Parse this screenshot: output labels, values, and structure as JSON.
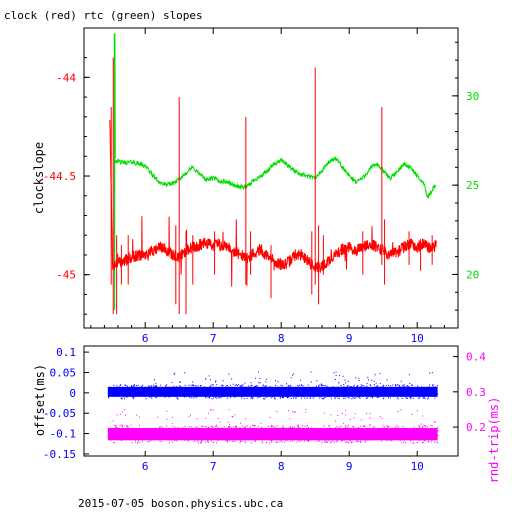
{
  "figure": {
    "title": "clock (red) rtc (green) slopes",
    "footer": "2015-07-05  boson.physics.ubc.ca"
  },
  "colors": {
    "clock": "#ff0000",
    "rtc": "#00dd00",
    "offset": "#0000ff",
    "roundtrip": "#ff00ff",
    "axes": "#000000"
  },
  "chart_data": [
    {
      "type": "line",
      "title": "clock (red) rtc (green) slopes",
      "xlim": [
        5.1,
        10.6
      ],
      "x_ticks": [
        "6",
        "7",
        "8",
        "9",
        "10"
      ],
      "x_tick_values": [
        6,
        7,
        8,
        9,
        10
      ],
      "y_left": {
        "label": "clockslope",
        "lim": [
          -45.27,
          -43.75
        ],
        "ticks": [
          "-44",
          "-44.5",
          "-45"
        ],
        "tick_values": [
          -44,
          -44.5,
          -45
        ]
      },
      "y_right": {
        "label": "",
        "lim": [
          17.0,
          33.8
        ],
        "ticks": [
          "30",
          "25",
          "20"
        ],
        "tick_values": [
          30,
          25,
          20
        ]
      },
      "grid": false,
      "series": [
        {
          "axis": "left",
          "x": [
            5.48,
            5.52,
            5.56,
            5.6,
            5.7,
            5.8,
            5.9,
            6.0,
            6.1,
            6.2,
            6.3,
            6.4,
            6.5,
            6.6,
            6.7,
            6.8,
            6.9,
            7.0,
            7.1,
            7.2,
            7.3,
            7.4,
            7.5,
            7.6,
            7.7,
            7.8,
            7.9,
            8.0,
            8.1,
            8.2,
            8.3,
            8.4,
            8.5,
            8.6,
            8.7,
            8.8,
            8.9,
            9.0,
            9.1,
            9.2,
            9.3,
            9.4,
            9.5,
            9.6,
            9.7,
            9.8,
            9.9,
            10.0,
            10.1,
            10.2,
            10.28
          ],
          "y": [
            -44.2,
            -44.95,
            -44.95,
            -44.94,
            -44.93,
            -44.91,
            -44.9,
            -44.9,
            -44.88,
            -44.86,
            -44.87,
            -44.9,
            -44.91,
            -44.88,
            -44.86,
            -44.85,
            -44.84,
            -44.85,
            -44.85,
            -44.85,
            -44.88,
            -44.9,
            -44.92,
            -44.89,
            -44.87,
            -44.91,
            -44.93,
            -44.95,
            -44.94,
            -44.9,
            -44.9,
            -44.93,
            -44.96,
            -44.96,
            -44.93,
            -44.9,
            -44.87,
            -44.86,
            -44.88,
            -44.86,
            -44.84,
            -44.86,
            -44.88,
            -44.9,
            -44.89,
            -44.86,
            -44.84,
            -44.86,
            -44.84,
            -44.87,
            -44.85
          ]
        },
        {
          "axis": "right",
          "x": [
            5.55,
            5.62,
            5.7,
            5.8,
            5.9,
            6.0,
            6.1,
            6.2,
            6.3,
            6.4,
            6.5,
            6.6,
            6.7,
            6.8,
            6.9,
            7.0,
            7.1,
            7.2,
            7.3,
            7.4,
            7.5,
            7.6,
            7.7,
            7.8,
            7.9,
            8.0,
            8.1,
            8.2,
            8.3,
            8.4,
            8.5,
            8.6,
            8.7,
            8.8,
            8.9,
            9.0,
            9.1,
            9.2,
            9.3,
            9.4,
            9.5,
            9.6,
            9.7,
            9.8,
            9.9,
            10.0,
            10.1,
            10.15,
            10.2,
            10.28
          ],
          "y": [
            26.4,
            26.3,
            26.25,
            26.3,
            26.2,
            26.1,
            25.6,
            25.2,
            25.0,
            25.1,
            25.3,
            25.7,
            26.0,
            25.6,
            25.3,
            25.4,
            25.2,
            25.2,
            25.0,
            24.9,
            24.9,
            25.3,
            25.5,
            25.8,
            26.2,
            26.4,
            26.1,
            25.8,
            25.6,
            25.5,
            25.4,
            25.8,
            26.3,
            26.5,
            26.0,
            25.5,
            25.2,
            25.4,
            25.9,
            26.2,
            25.8,
            25.4,
            25.7,
            26.2,
            26.0,
            25.5,
            25.1,
            24.3,
            24.6,
            25.1
          ]
        }
      ]
    },
    {
      "type": "scatter",
      "xlim": [
        5.1,
        10.6
      ],
      "x_ticks": [
        "6",
        "7",
        "8",
        "9",
        "10"
      ],
      "x_tick_values": [
        6,
        7,
        8,
        9,
        10
      ],
      "y_left": {
        "label": "offset(ms)",
        "lim": [
          -0.155,
          0.115
        ],
        "ticks": [
          "0.1",
          "0.05",
          "0",
          "-0.05",
          "-0.1",
          "-0.15"
        ],
        "tick_values": [
          0.1,
          0.05,
          0,
          -0.05,
          -0.1,
          -0.15
        ]
      },
      "y_right": {
        "label": "rnd-trip(ms)",
        "lim": [
          0.118,
          0.43
        ],
        "ticks": [
          "0.4",
          "0.3",
          "0.2"
        ],
        "tick_values": [
          0.4,
          0.3,
          0.2
        ]
      },
      "grid": false,
      "series": [
        {
          "axis": "left",
          "x_range": [
            5.45,
            10.3
          ],
          "y_band": [
            -0.015,
            0.02
          ]
        },
        {
          "axis": "right",
          "x_range": [
            5.45,
            10.3
          ],
          "y_band": [
            0.155,
            0.205
          ]
        }
      ]
    }
  ]
}
